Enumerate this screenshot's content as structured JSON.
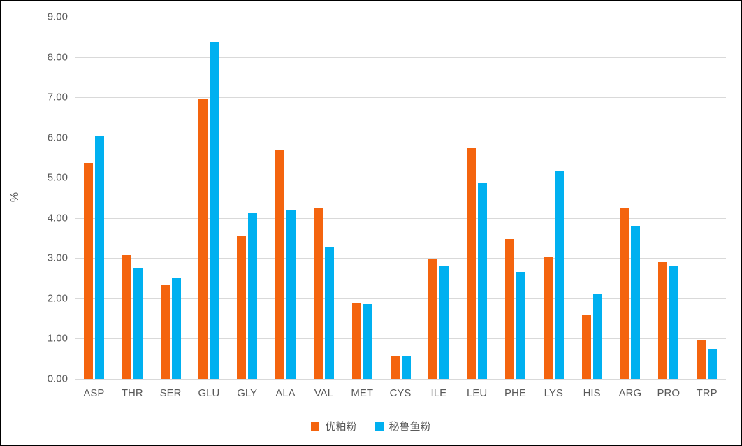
{
  "chart_data": {
    "type": "bar",
    "title": "",
    "ylabel": "%",
    "xlabel": "",
    "ylim": [
      0,
      9
    ],
    "ytick_step": 1,
    "ytick_labels": [
      "0.00",
      "1.00",
      "2.00",
      "3.00",
      "4.00",
      "5.00",
      "6.00",
      "7.00",
      "8.00",
      "9.00"
    ],
    "grid": "horizontal",
    "gridline_color": "#d9d9d9",
    "axis_text_color": "#595959",
    "legend_position": "bottom",
    "categories": [
      "ASP",
      "THR",
      "SER",
      "GLU",
      "GLY",
      "ALA",
      "VAL",
      "MET",
      "CYS",
      "ILE",
      "LEU",
      "PHE",
      "LYS",
      "HIS",
      "ARG",
      "PRO",
      "TRP"
    ],
    "series": [
      {
        "name": "优粕粉",
        "color": "#f4640e",
        "values": [
          5.37,
          3.07,
          2.32,
          6.97,
          3.55,
          5.68,
          4.26,
          1.87,
          0.58,
          2.99,
          5.75,
          3.47,
          3.02,
          1.59,
          4.26,
          2.91,
          0.97
        ]
      },
      {
        "name": "秘鲁鱼粉",
        "color": "#00b0f0",
        "values": [
          6.04,
          2.77,
          2.52,
          8.37,
          4.14,
          4.2,
          3.27,
          1.86,
          0.58,
          2.81,
          4.86,
          2.66,
          5.17,
          2.1,
          3.79,
          2.79,
          0.74
        ]
      }
    ]
  }
}
